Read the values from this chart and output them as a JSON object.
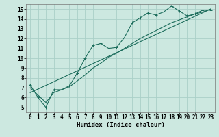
{
  "xlabel": "Humidex (Indice chaleur)",
  "ylabel": "",
  "bg_color": "#cce8e0",
  "grid_color": "#aad0c8",
  "line_color": "#1a6b5a",
  "xlim": [
    -0.5,
    23.5
  ],
  "ylim": [
    4.5,
    15.5
  ],
  "xticks": [
    0,
    1,
    2,
    3,
    4,
    5,
    6,
    7,
    8,
    9,
    10,
    11,
    12,
    13,
    14,
    15,
    16,
    17,
    18,
    19,
    20,
    21,
    22,
    23
  ],
  "yticks": [
    5,
    6,
    7,
    8,
    9,
    10,
    11,
    12,
    13,
    14,
    15
  ],
  "main_x": [
    0,
    1,
    2,
    3,
    4,
    5,
    6,
    7,
    8,
    9,
    10,
    11,
    12,
    13,
    14,
    15,
    16,
    17,
    18,
    19,
    20,
    21,
    22,
    23
  ],
  "main_y": [
    7.3,
    6.0,
    5.0,
    6.8,
    6.8,
    7.2,
    8.5,
    10.0,
    11.3,
    11.5,
    11.0,
    11.1,
    12.1,
    13.6,
    14.1,
    14.6,
    14.4,
    14.7,
    15.3,
    14.8,
    14.3,
    14.5,
    14.9,
    14.9
  ],
  "line2_x": [
    0,
    2,
    3,
    4,
    5,
    6,
    7,
    8,
    9,
    10,
    11,
    12,
    13,
    14,
    15,
    16,
    17,
    18,
    19,
    20,
    21,
    22,
    23
  ],
  "line2_y": [
    7.0,
    5.5,
    6.5,
    6.8,
    7.1,
    7.7,
    8.3,
    9.0,
    9.5,
    10.1,
    10.5,
    11.0,
    11.5,
    12.0,
    12.4,
    12.8,
    13.2,
    13.6,
    13.9,
    14.2,
    14.5,
    14.7,
    15.0
  ],
  "line3_x": [
    0,
    23
  ],
  "line3_y": [
    6.5,
    15.0
  ],
  "xlabel_fontsize": 6.5,
  "tick_fontsize": 5.5
}
